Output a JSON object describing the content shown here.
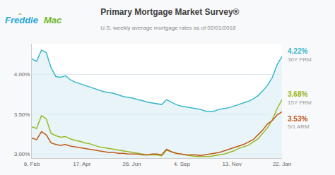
{
  "chart_data": {
    "type": "line",
    "title": "Primary Mortgage Market Survey®",
    "subtitle": "U.S. weekly average mortgage rates as of 02/01/2018",
    "x": [
      0,
      1,
      2,
      3,
      4,
      5,
      6,
      7,
      8,
      9,
      10,
      11,
      12,
      13,
      14,
      15,
      16,
      17,
      18,
      19,
      20,
      21,
      22,
      23,
      24,
      25,
      26,
      27,
      28,
      29,
      30,
      31,
      32,
      33,
      34,
      35,
      36,
      37,
      38,
      39,
      40,
      41,
      42,
      43,
      44,
      45,
      46,
      47,
      48,
      49,
      50,
      51,
      52
    ],
    "xlim": [
      0,
      52
    ],
    "xticks": [
      {
        "value": 0,
        "label": "6. Feb"
      },
      {
        "value": 10.4,
        "label": "17. Apr"
      },
      {
        "value": 20.8,
        "label": "26. Jun"
      },
      {
        "value": 31.2,
        "label": "4. Sep"
      },
      {
        "value": 41.6,
        "label": "13. Nov"
      },
      {
        "value": 52,
        "label": "22. Jan"
      }
    ],
    "ylim": [
      2.95,
      4.38
    ],
    "yticks": [
      {
        "value": 3.0,
        "label": "3.00%"
      },
      {
        "value": 3.5,
        "label": "3.50%"
      },
      {
        "value": 4.0,
        "label": "4.00%"
      }
    ],
    "grid": true,
    "series": [
      {
        "name": "30Y FRM",
        "color": "#3ab8cc",
        "values": [
          4.19,
          4.16,
          4.3,
          4.27,
          4.08,
          3.97,
          3.96,
          3.98,
          3.93,
          3.9,
          3.88,
          3.86,
          3.84,
          3.82,
          3.8,
          3.78,
          3.77,
          3.76,
          3.74,
          3.72,
          3.71,
          3.7,
          3.68,
          3.67,
          3.65,
          3.64,
          3.63,
          3.62,
          3.68,
          3.65,
          3.62,
          3.6,
          3.59,
          3.58,
          3.57,
          3.56,
          3.54,
          3.53,
          3.54,
          3.56,
          3.57,
          3.58,
          3.6,
          3.62,
          3.64,
          3.66,
          3.69,
          3.73,
          3.79,
          3.86,
          3.96,
          4.12,
          4.22
        ]
      },
      {
        "name": "15Y FRM",
        "color": "#9ab820",
        "values": [
          3.34,
          3.32,
          3.48,
          3.44,
          3.26,
          3.23,
          3.21,
          3.22,
          3.19,
          3.17,
          3.16,
          3.14,
          3.13,
          3.11,
          3.09,
          3.08,
          3.07,
          3.06,
          3.05,
          3.04,
          3.03,
          3.02,
          3.01,
          3.0,
          2.99,
          2.99,
          2.99,
          2.98,
          3.05,
          3.03,
          3.01,
          3.0,
          2.99,
          2.98,
          2.97,
          2.97,
          2.97,
          2.97,
          2.98,
          2.99,
          3.0,
          3.02,
          3.04,
          3.07,
          3.09,
          3.11,
          3.15,
          3.19,
          3.26,
          3.33,
          3.43,
          3.57,
          3.68
        ]
      },
      {
        "name": "5/1 ARM",
        "color": "#c05818",
        "values": [
          3.2,
          3.18,
          3.28,
          3.24,
          3.14,
          3.12,
          3.11,
          3.12,
          3.1,
          3.09,
          3.08,
          3.07,
          3.06,
          3.05,
          3.04,
          3.03,
          3.02,
          3.02,
          3.01,
          3.01,
          3.0,
          3.0,
          3.0,
          2.99,
          2.99,
          3.0,
          3.0,
          2.99,
          3.06,
          3.03,
          3.01,
          3.0,
          2.99,
          2.99,
          2.99,
          2.98,
          2.99,
          3.0,
          3.01,
          3.02,
          3.04,
          3.06,
          3.08,
          3.1,
          3.12,
          3.15,
          3.18,
          3.24,
          3.3,
          3.38,
          3.42,
          3.49,
          3.53
        ]
      }
    ],
    "annotations": [
      {
        "text": "Freddie",
        "color": "#28a8d8"
      },
      {
        "text": "Mac",
        "color": "#72b828"
      },
      {
        "text": "‸",
        "color": "#72b828"
      },
      {
        "text": "4.22%",
        "x": 52,
        "y": 4.22,
        "color": "#3ab8cc"
      },
      {
        "text": "3.68%",
        "x": 52,
        "y": 3.68,
        "color": "#9ab820"
      },
      {
        "text": "3.53%",
        "x": 52,
        "y": 3.53,
        "color": "#c05818"
      }
    ]
  }
}
